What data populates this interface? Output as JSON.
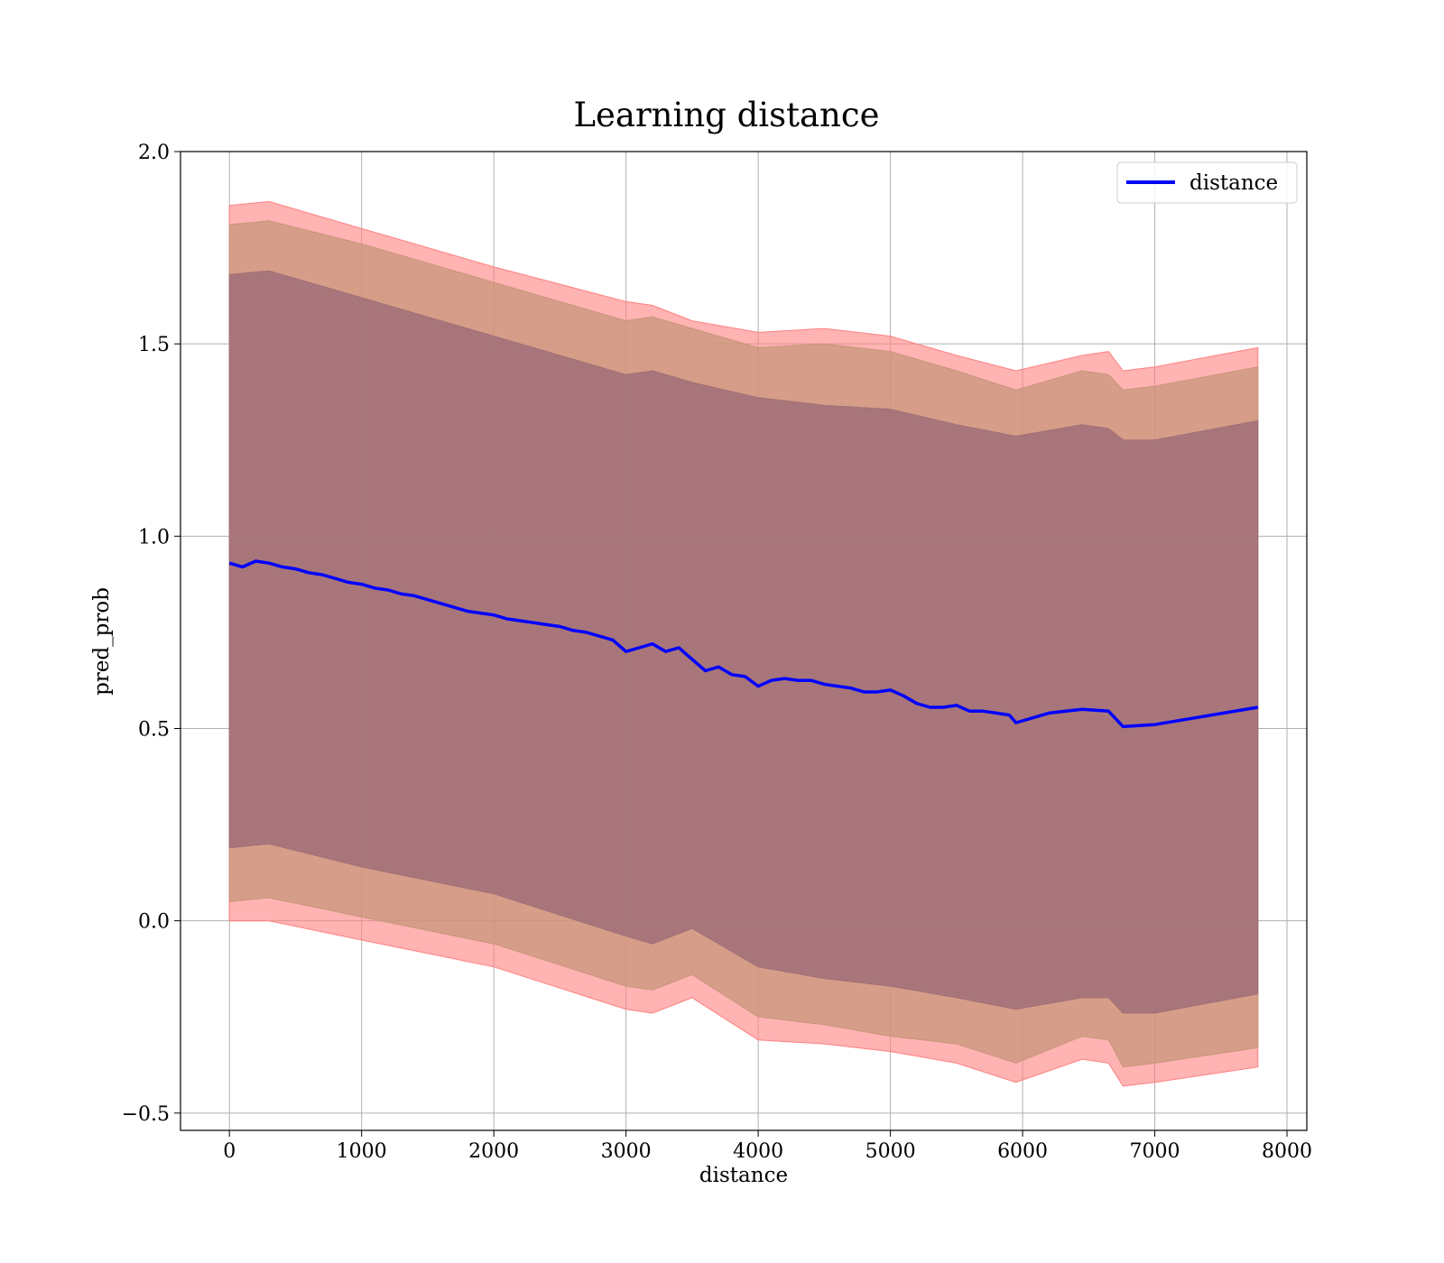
{
  "chart_data": {
    "type": "area",
    "title": "Learning distance",
    "xlabel": "distance",
    "ylabel": "pred_prob",
    "xlim": [
      -370,
      8150
    ],
    "ylim": [
      -0.545,
      2.0
    ],
    "xticks": [
      0,
      1000,
      2000,
      3000,
      4000,
      5000,
      6000,
      7000,
      8000
    ],
    "xtick_labels": [
      "0",
      "1000",
      "2000",
      "3000",
      "4000",
      "5000",
      "6000",
      "7000",
      "8000"
    ],
    "yticks": [
      -0.5,
      0.0,
      0.5,
      1.0,
      1.5,
      2.0
    ],
    "ytick_labels": [
      "−0.5",
      "0.0",
      "0.5",
      "1.0",
      "1.5",
      "2.0"
    ],
    "grid": true,
    "legend_position": "top-right",
    "series": [
      {
        "name": "distance",
        "color": "#0000ff",
        "x": [
          0,
          100,
          200,
          300,
          400,
          500,
          600,
          700,
          800,
          900,
          1000,
          1100,
          1200,
          1300,
          1400,
          1500,
          1600,
          1700,
          1800,
          1900,
          2000,
          2100,
          2200,
          2300,
          2400,
          2500,
          2600,
          2700,
          2800,
          2900,
          3000,
          3100,
          3200,
          3300,
          3400,
          3500,
          3600,
          3700,
          3800,
          3900,
          4000,
          4100,
          4200,
          4300,
          4400,
          4500,
          4600,
          4700,
          4800,
          4900,
          5000,
          5100,
          5200,
          5300,
          5400,
          5500,
          5600,
          5700,
          5800,
          5900,
          5950,
          6000,
          6200,
          6450,
          6650,
          6760,
          7000,
          7780
        ],
        "y": [
          0.93,
          0.92,
          0.935,
          0.93,
          0.92,
          0.915,
          0.905,
          0.9,
          0.89,
          0.88,
          0.875,
          0.865,
          0.86,
          0.85,
          0.845,
          0.835,
          0.825,
          0.815,
          0.805,
          0.8,
          0.795,
          0.785,
          0.78,
          0.775,
          0.77,
          0.765,
          0.755,
          0.75,
          0.74,
          0.73,
          0.7,
          0.71,
          0.72,
          0.7,
          0.71,
          0.68,
          0.65,
          0.66,
          0.64,
          0.635,
          0.61,
          0.625,
          0.63,
          0.625,
          0.625,
          0.615,
          0.61,
          0.605,
          0.595,
          0.595,
          0.6,
          0.585,
          0.565,
          0.555,
          0.555,
          0.56,
          0.545,
          0.545,
          0.54,
          0.535,
          0.515,
          0.52,
          0.54,
          0.55,
          0.545,
          0.505,
          0.51,
          0.555
        ]
      }
    ],
    "bands": [
      {
        "name": "outer",
        "color": "#ff8080",
        "x": [
          0,
          300,
          1000,
          2000,
          3000,
          3200,
          3500,
          4000,
          4500,
          5000,
          5500,
          5950,
          6450,
          6650,
          6760,
          7000,
          7780
        ],
        "upper": [
          1.86,
          1.87,
          1.8,
          1.7,
          1.61,
          1.6,
          1.56,
          1.53,
          1.54,
          1.52,
          1.47,
          1.43,
          1.47,
          1.48,
          1.43,
          1.44,
          1.49
        ],
        "lower": [
          0.0,
          0.0,
          -0.05,
          -0.12,
          -0.23,
          -0.24,
          -0.2,
          -0.31,
          -0.32,
          -0.34,
          -0.37,
          -0.42,
          -0.36,
          -0.37,
          -0.43,
          -0.42,
          -0.38
        ]
      },
      {
        "name": "middle",
        "color": "#c8967a",
        "x": [
          0,
          300,
          1000,
          2000,
          3000,
          3200,
          3500,
          4000,
          4500,
          5000,
          5500,
          5950,
          6450,
          6650,
          6760,
          7000,
          7780
        ],
        "upper": [
          1.81,
          1.82,
          1.76,
          1.66,
          1.56,
          1.57,
          1.54,
          1.49,
          1.5,
          1.48,
          1.43,
          1.38,
          1.43,
          1.42,
          1.38,
          1.39,
          1.44
        ],
        "lower": [
          0.05,
          0.06,
          0.01,
          -0.06,
          -0.17,
          -0.18,
          -0.14,
          -0.25,
          -0.27,
          -0.3,
          -0.32,
          -0.37,
          -0.3,
          -0.31,
          -0.38,
          -0.37,
          -0.33
        ]
      },
      {
        "name": "inner",
        "color": "#a07078",
        "x": [
          0,
          300,
          1000,
          2000,
          3000,
          3200,
          3500,
          4000,
          4500,
          5000,
          5500,
          5950,
          6450,
          6650,
          6760,
          7000,
          7780
        ],
        "upper": [
          1.68,
          1.69,
          1.62,
          1.52,
          1.42,
          1.43,
          1.4,
          1.36,
          1.34,
          1.33,
          1.29,
          1.26,
          1.29,
          1.28,
          1.25,
          1.25,
          1.3
        ],
        "lower": [
          0.19,
          0.2,
          0.14,
          0.07,
          -0.04,
          -0.06,
          -0.02,
          -0.12,
          -0.15,
          -0.17,
          -0.2,
          -0.23,
          -0.2,
          -0.2,
          -0.24,
          -0.24,
          -0.19
        ]
      }
    ]
  }
}
